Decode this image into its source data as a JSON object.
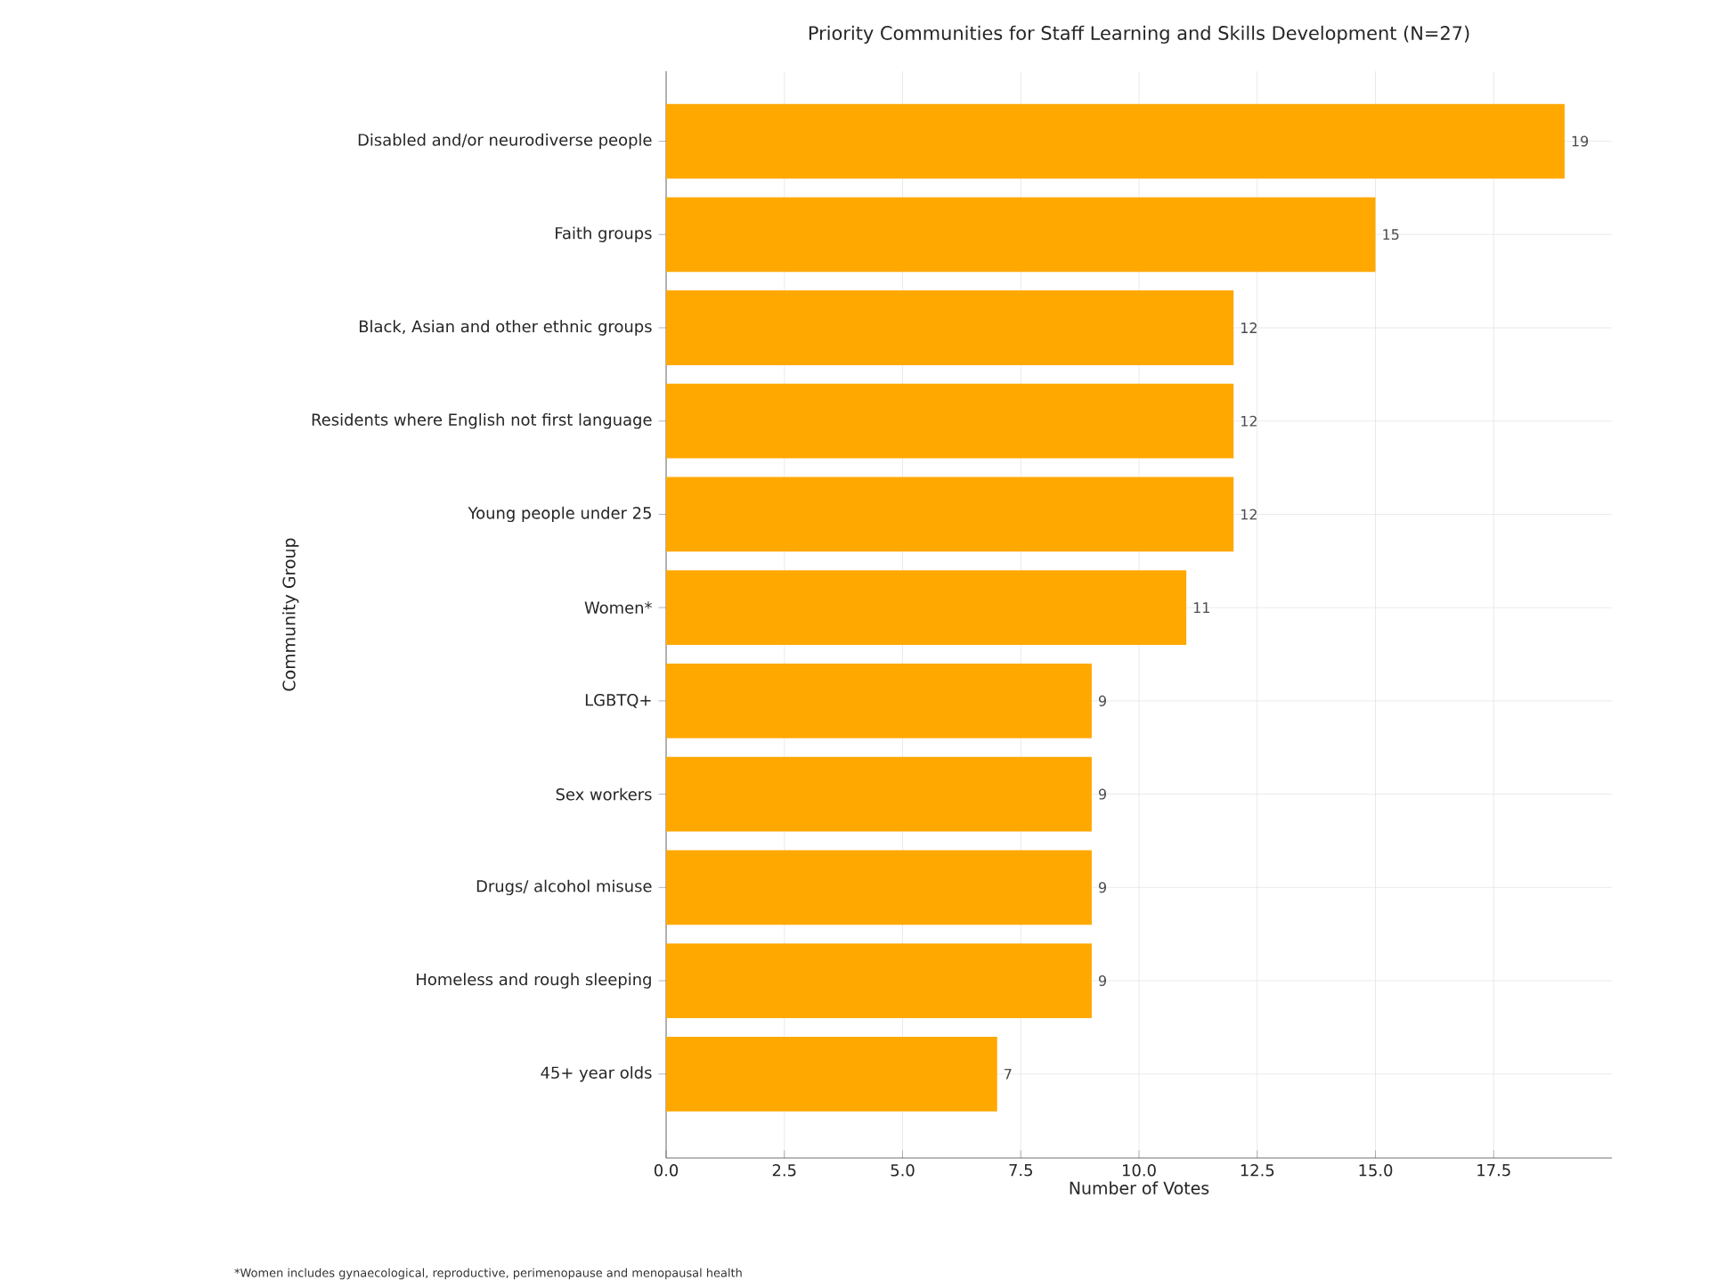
{
  "chart_data": {
    "type": "bar",
    "orientation": "horizontal",
    "title": "Priority Communities for Staff Learning and Skills Development (N=27)",
    "xlabel": "Number of Votes",
    "ylabel": "Community Group",
    "categories": [
      "Disabled and/or neurodiverse people",
      "Faith groups",
      "Black, Asian and other ethnic groups",
      "Residents where English not first language",
      "Young people under 25",
      "Women*",
      "LGBTQ+",
      "Sex workers",
      "Drugs/ alcohol misuse",
      "Homeless and rough sleeping",
      "45+ year olds"
    ],
    "values": [
      19,
      15,
      12,
      12,
      12,
      11,
      9,
      9,
      9,
      9,
      7
    ],
    "color": "#ffa800",
    "xlim": [
      0,
      20
    ],
    "xticks": [
      {
        "value": 0,
        "label": "0.0"
      },
      {
        "value": 2.5,
        "label": "2.5"
      },
      {
        "value": 5,
        "label": "5.0"
      },
      {
        "value": 7.5,
        "label": "7.5"
      },
      {
        "value": 10,
        "label": "10.0"
      },
      {
        "value": 12.5,
        "label": "12.5"
      },
      {
        "value": 15,
        "label": "15.0"
      },
      {
        "value": 17.5,
        "label": "17.5"
      }
    ],
    "grid": true,
    "data_labels": true,
    "annotations": [
      "*Women includes gynaecological, reproductive, perimenopause and menopausal health"
    ]
  }
}
